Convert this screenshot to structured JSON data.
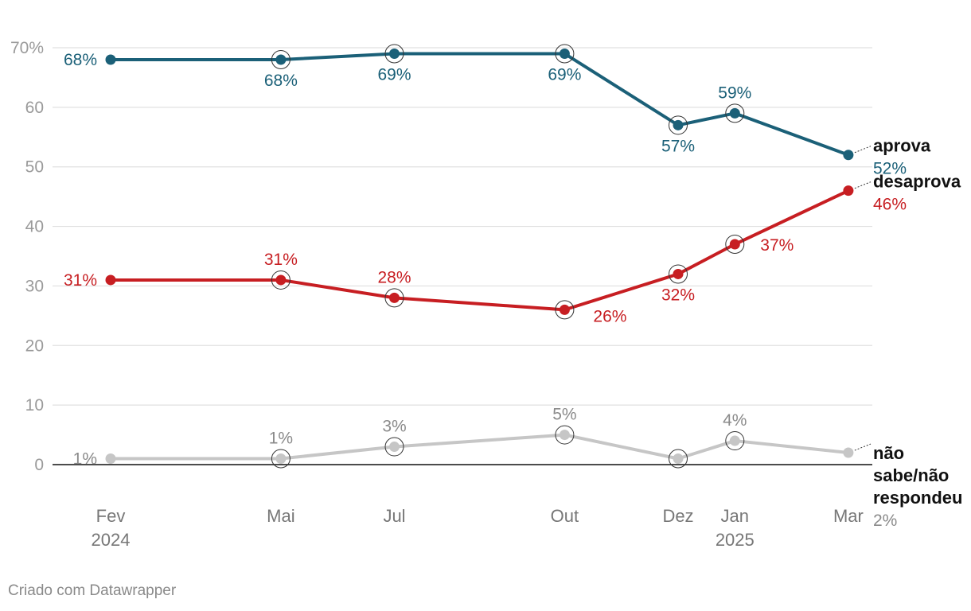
{
  "chart_data": {
    "type": "line",
    "y_unit_label": "70%",
    "yticks": [
      0,
      10,
      20,
      30,
      40,
      50,
      60,
      70
    ],
    "ylim": [
      0,
      70
    ],
    "x_ticks": [
      {
        "label": "Fev",
        "year": "2024",
        "t": 0
      },
      {
        "label": "Mai",
        "year": "",
        "t": 3
      },
      {
        "label": "Jul",
        "year": "",
        "t": 5
      },
      {
        "label": "Out",
        "year": "",
        "t": 8
      },
      {
        "label": "Dez",
        "year": "",
        "t": 10
      },
      {
        "label": "Jan",
        "year": "2025",
        "t": 11
      },
      {
        "label": "Mar",
        "year": "",
        "t": 13
      }
    ],
    "series": [
      {
        "key": "aprova",
        "name": "aprova",
        "name_lines": [
          "aprova"
        ],
        "color": "#1b6078",
        "values": [
          68,
          68,
          69,
          69,
          57,
          59,
          52
        ],
        "labels": [
          "68%",
          "68%",
          "69%",
          "69%",
          "57%",
          "59%",
          "52%"
        ],
        "label_pos": [
          "left",
          "below",
          "below",
          "below",
          "below",
          "above",
          "end"
        ]
      },
      {
        "key": "desaprova",
        "name": "desaprova",
        "name_lines": [
          "desaprova"
        ],
        "color": "#c71e22",
        "values": [
          31,
          31,
          28,
          26,
          32,
          37,
          46
        ],
        "labels": [
          "31%",
          "31%",
          "28%",
          "26%",
          "32%",
          "37%",
          "46%"
        ],
        "label_pos": [
          "left",
          "above",
          "above",
          "below-right",
          "below",
          "right",
          "end"
        ]
      },
      {
        "key": "nao_sabe",
        "name": "não sabe/não respondeu",
        "name_lines": [
          "não",
          "sabe/não",
          "respondeu"
        ],
        "color": "#c6c6c6",
        "label_color": "#8a8a8a",
        "values": [
          1,
          1,
          3,
          5,
          1,
          4,
          2
        ],
        "labels": [
          "1%",
          "1%",
          "3%",
          "5%",
          "",
          "4%",
          "2%"
        ],
        "label_pos": [
          "left",
          "above",
          "above",
          "above",
          "none",
          "above",
          "end"
        ]
      }
    ],
    "highlighted_points": [
      1,
      2,
      3,
      4,
      5
    ]
  },
  "footer": "Criado com Datawrapper"
}
